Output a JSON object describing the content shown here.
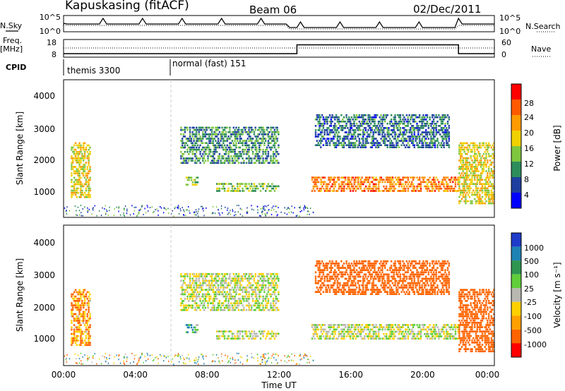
{
  "header": {
    "station": "Kapuskasing (fitACF)",
    "beam": "Beam 06",
    "date": "02/Dec/2011"
  },
  "panels": {
    "nsky": {
      "label": "N.Sky",
      "left_ticks": [
        "10^5",
        "10^0"
      ],
      "right_ticks": [
        "10^5",
        "10^0"
      ],
      "right_label": "N.Search"
    },
    "freq": {
      "label_line1": "Freq.",
      "label_line2": "[MHz]",
      "left_ticks": [
        "18",
        "8"
      ],
      "right_ticks": [
        "60",
        "0"
      ],
      "right_label": "Nave"
    },
    "cpid": {
      "label": "CPID",
      "segments": [
        "themis 3300",
        "normal (fast) 151"
      ]
    }
  },
  "x_axis": {
    "ticks": [
      "00:00",
      "04:00",
      "08:00",
      "12:00",
      "16:00",
      "20:00",
      "00:00"
    ],
    "label": "Time UT"
  },
  "power_panel": {
    "ylabel": "Slant Range [km]",
    "yticks": [
      "1000",
      "2000",
      "3000",
      "4000"
    ],
    "colorbar_label": "Power [dB]",
    "colorbar_ticks": [
      "4",
      "8",
      "12",
      "16",
      "20",
      "24",
      "28"
    ],
    "colors": [
      "#0000ff",
      "#1f3fa0",
      "#2c8c5a",
      "#7ec63e",
      "#f0d000",
      "#ff9a00",
      "#ff5a00",
      "#ff0000"
    ]
  },
  "velocity_panel": {
    "ylabel": "Slant Range [km]",
    "yticks": [
      "1000",
      "2000",
      "3000",
      "4000"
    ],
    "colorbar_label": "Velocity [m s⁻¹]",
    "colorbar_ticks": [
      "1000",
      "500",
      "100",
      "25",
      "-25",
      "-100",
      "-500",
      "-1000"
    ],
    "colors": [
      "#1e3cc8",
      "#1e82b4",
      "#2e9650",
      "#5fce3a",
      "#b8b8b0",
      "#ffd000",
      "#ffa000",
      "#ff6400",
      "#ff0000"
    ]
  },
  "chart_data": {
    "type": "heatmap",
    "x_range_hours": [
      0,
      24
    ],
    "y_range_km": [
      180,
      4600
    ],
    "frequency_mhz": [
      {
        "t": [
          0,
          13
        ],
        "value": 10
      },
      {
        "t": [
          13,
          22
        ],
        "value": 15
      },
      {
        "t": [
          22,
          24
        ],
        "value": 10
      }
    ],
    "cpid_segments": [
      {
        "t": [
          0,
          6
        ],
        "name": "themis 3300"
      },
      {
        "t": [
          6,
          24
        ],
        "name": "normal (fast) 151"
      }
    ],
    "echo_regions": [
      {
        "t": [
          0.4,
          1.5
        ],
        "range_km": [
          800,
          2600
        ],
        "power_db": 18,
        "velocity": -100
      },
      {
        "t": [
          6.5,
          12
        ],
        "range_km": [
          1900,
          3100
        ],
        "power_db": 10,
        "velocity": 0
      },
      {
        "t": [
          6.8,
          7.5
        ],
        "range_km": [
          1200,
          1500
        ],
        "power_db": 16,
        "velocity": 100
      },
      {
        "t": [
          8.5,
          12
        ],
        "range_km": [
          1000,
          1300
        ],
        "power_db": 14,
        "velocity": 0
      },
      {
        "t": [
          13.8,
          22
        ],
        "range_km": [
          1000,
          1500
        ],
        "power_db": 24,
        "velocity": 0
      },
      {
        "t": [
          14,
          21.5
        ],
        "range_km": [
          2400,
          3500
        ],
        "power_db": 8,
        "velocity": -300
      },
      {
        "t": [
          22,
          24
        ],
        "range_km": [
          600,
          2600
        ],
        "power_db": 18,
        "velocity": -400
      }
    ]
  }
}
